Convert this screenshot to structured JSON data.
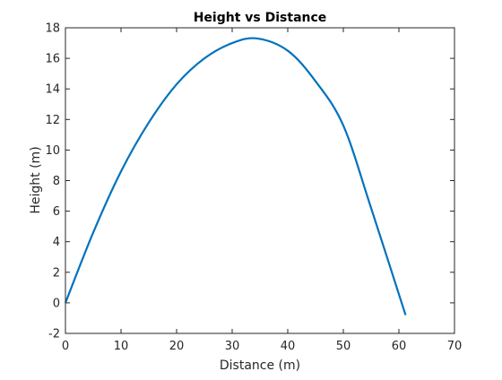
{
  "chart_data": {
    "type": "line",
    "title": "Height vs Distance",
    "xlabel": "Distance (m)",
    "ylabel": "Height (m)",
    "xlim": [
      0,
      70
    ],
    "ylim": [
      -2,
      18
    ],
    "xticks": [
      0,
      10,
      20,
      30,
      40,
      50,
      60,
      70
    ],
    "yticks": [
      -2,
      0,
      2,
      4,
      6,
      8,
      10,
      12,
      14,
      16,
      18
    ],
    "grid": false,
    "line_color": "#0072BD",
    "series": [
      {
        "x": [
          0,
          5,
          10,
          15,
          20,
          25,
          30,
          34.5,
          40,
          45,
          50,
          55,
          61.2
        ],
        "y": [
          0,
          4.6,
          8.6,
          11.8,
          14.3,
          16.0,
          17.0,
          17.3,
          16.5,
          14.5,
          11.6,
          6.2,
          -0.8
        ]
      }
    ]
  }
}
